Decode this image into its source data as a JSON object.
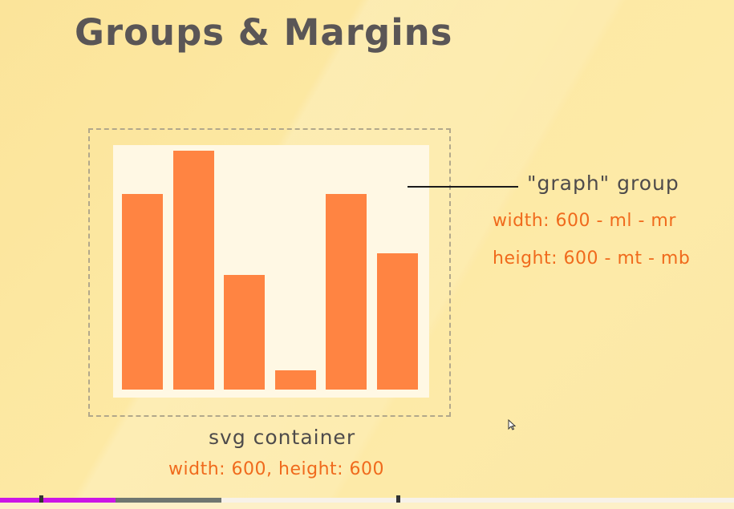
{
  "slide": {
    "title": "Groups & Margins",
    "callout_label": "\"graph\" group",
    "graph_width_formula": "width: 600 - ml - mr",
    "graph_height_formula": "height: 600 - mt - mb",
    "svg_label": "svg container",
    "svg_dimensions": "width: 600, height: 600"
  },
  "chart_data": {
    "type": "bar",
    "title": "",
    "values": [
      0.82,
      1.0,
      0.48,
      0.08,
      0.82,
      0.57
    ],
    "color": "#ff8442"
  },
  "player": {
    "played_fraction": 0.157,
    "buffered_fraction": 0.302
  },
  "colors": {
    "background": "#fde9a4",
    "bar": "#ff8442",
    "accent_text": "#f06a1c",
    "progress_played": "#cc16e6"
  }
}
